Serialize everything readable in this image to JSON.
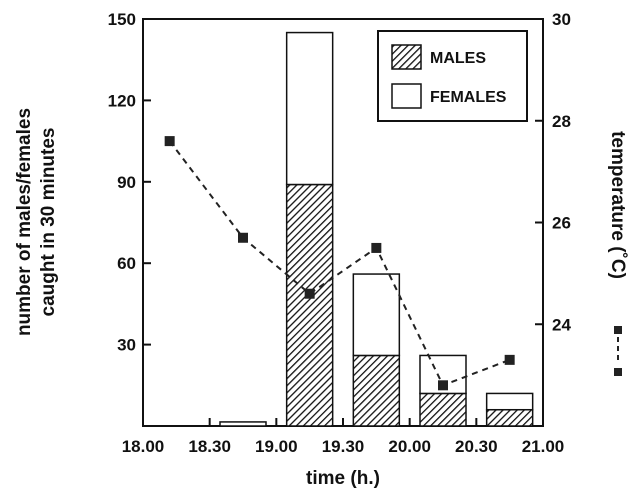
{
  "chart_data": {
    "type": "bar",
    "bar_mode": "stacked",
    "x": [
      18.75,
      19.25,
      19.75,
      20.25,
      20.75
    ],
    "series": [
      {
        "name": "MALES",
        "values": [
          0,
          89,
          26,
          12,
          6
        ],
        "fill": "hatched"
      },
      {
        "name": "FEMALES",
        "values": [
          1.5,
          56,
          30,
          14,
          6
        ],
        "fill": "white"
      }
    ],
    "line_series": {
      "axis": "right",
      "style": "dashed-square-markers",
      "x": [
        18.2,
        18.75,
        19.25,
        19.75,
        20.25,
        20.75
      ],
      "values": [
        27.6,
        25.7,
        24.6,
        25.5,
        22.8,
        23.3
      ]
    },
    "xlabel": "time (h.)",
    "ylabel_left": [
      "number of males/females",
      "caught in 30 minutes"
    ],
    "ylabel_right": "temperature (˚C)",
    "xlim": [
      18.0,
      21.0
    ],
    "ylim_left": [
      0,
      150
    ],
    "ylim_right": [
      22,
      30
    ],
    "x_ticks": [
      18.0,
      18.5,
      19.0,
      19.5,
      20.0,
      20.5,
      21.0
    ],
    "x_tick_labels": [
      "18.00",
      "18.30",
      "19.00",
      "19.30",
      "20.00",
      "20.30",
      "21.00"
    ],
    "y_ticks_left": [
      30,
      60,
      90,
      120,
      150
    ],
    "y_tick_labels_left": [
      "30",
      "60",
      "90",
      "120",
      "150"
    ],
    "y_ticks_right": [
      24,
      26,
      28,
      30
    ],
    "y_tick_labels_right": [
      "24",
      "26",
      "28",
      "30"
    ],
    "legend_position": "top-right",
    "grid": false
  }
}
